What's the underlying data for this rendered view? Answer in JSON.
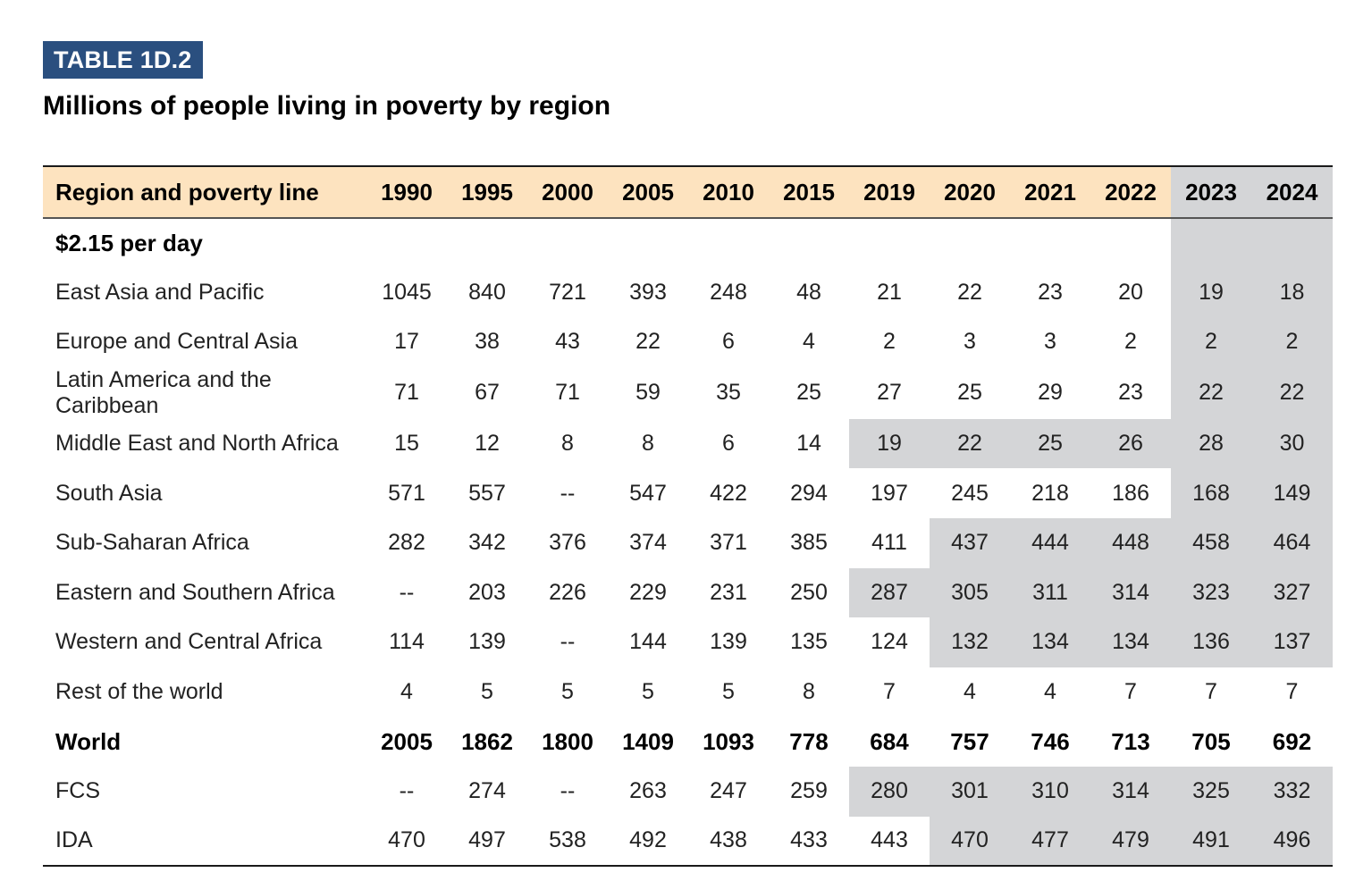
{
  "header": {
    "badge": "TABLE 1D.2",
    "title": "Millions of people living in poverty by region"
  },
  "table": {
    "columns": [
      "Region and poverty line",
      "1990",
      "1995",
      "2000",
      "2005",
      "2010",
      "2015",
      "2019",
      "2020",
      "2021",
      "2022",
      "2023",
      "2024"
    ],
    "section_label": "$2.15 per day",
    "rows": [
      {
        "label": "East Asia and Pacific",
        "values": [
          "1045",
          "840",
          "721",
          "393",
          "248",
          "48",
          "21",
          "22",
          "23",
          "20",
          "19",
          "18"
        ]
      },
      {
        "label": "Europe and Central Asia",
        "values": [
          "17",
          "38",
          "43",
          "22",
          "6",
          "4",
          "2",
          "3",
          "3",
          "2",
          "2",
          "2"
        ]
      },
      {
        "label": "Latin America and the Caribbean",
        "values": [
          "71",
          "67",
          "71",
          "59",
          "35",
          "25",
          "27",
          "25",
          "29",
          "23",
          "22",
          "22"
        ]
      },
      {
        "label": "Middle East and North Africa",
        "values": [
          "15",
          "12",
          "8",
          "8",
          "6",
          "14",
          "19",
          "22",
          "25",
          "26",
          "28",
          "30"
        ]
      },
      {
        "label": "South Asia",
        "values": [
          "571",
          "557",
          "--",
          "547",
          "422",
          "294",
          "197",
          "245",
          "218",
          "186",
          "168",
          "149"
        ]
      },
      {
        "label": "Sub-Saharan Africa",
        "values": [
          "282",
          "342",
          "376",
          "374",
          "371",
          "385",
          "411",
          "437",
          "444",
          "448",
          "458",
          "464"
        ]
      },
      {
        "label": "Eastern and Southern Africa",
        "values": [
          "--",
          "203",
          "226",
          "229",
          "231",
          "250",
          "287",
          "305",
          "311",
          "314",
          "323",
          "327"
        ]
      },
      {
        "label": "Western and Central Africa",
        "values": [
          "114",
          "139",
          "--",
          "144",
          "139",
          "135",
          "124",
          "132",
          "134",
          "134",
          "136",
          "137"
        ]
      },
      {
        "label": "Rest of the world",
        "values": [
          "4",
          "5",
          "5",
          "5",
          "5",
          "8",
          "7",
          "4",
          "4",
          "7",
          "7",
          "7"
        ]
      },
      {
        "label": "World",
        "values": [
          "2005",
          "1862",
          "1800",
          "1409",
          "1093",
          "778",
          "684",
          "757",
          "746",
          "713",
          "705",
          "692"
        ]
      },
      {
        "label": "FCS",
        "values": [
          "--",
          "274",
          "--",
          "263",
          "247",
          "259",
          "280",
          "301",
          "310",
          "314",
          "325",
          "332"
        ]
      },
      {
        "label": "IDA",
        "values": [
          "470",
          "497",
          "538",
          "492",
          "438",
          "433",
          "443",
          "470",
          "477",
          "479",
          "491",
          "496"
        ]
      }
    ]
  }
}
